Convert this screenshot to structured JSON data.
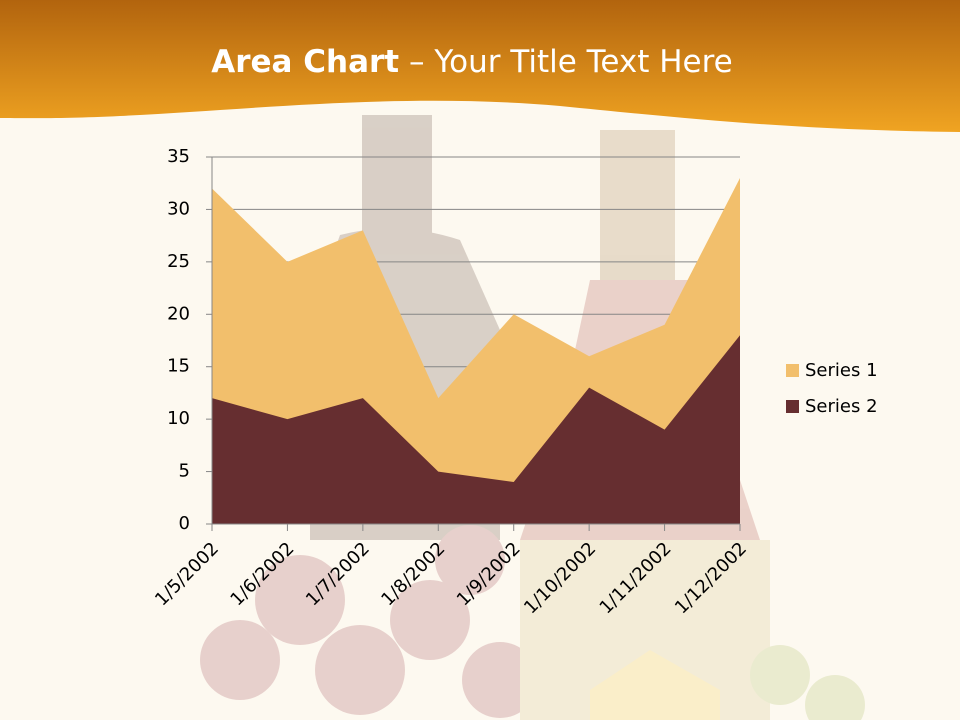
{
  "chart_data": {
    "type": "area",
    "title": [
      "Area Chart",
      " – Your Title Text Here"
    ],
    "categories": [
      "1/5/2002",
      "1/6/2002",
      "1/7/2002",
      "1/8/2002",
      "1/9/2002",
      "1/10/2002",
      "1/11/2002",
      "1/12/2002"
    ],
    "series": [
      {
        "name": "Series 1",
        "color": "#f2bf6c",
        "values": [
          32,
          25,
          28,
          12,
          20,
          16,
          19,
          33
        ]
      },
      {
        "name": "Series 2",
        "color": "#662e30",
        "values": [
          12,
          10,
          12,
          5,
          4,
          13,
          9,
          18
        ]
      }
    ],
    "ylim": [
      0,
      35
    ],
    "yticks": [
      0,
      5,
      10,
      15,
      20,
      25,
      30,
      35
    ],
    "grid": true,
    "legend": "right"
  }
}
